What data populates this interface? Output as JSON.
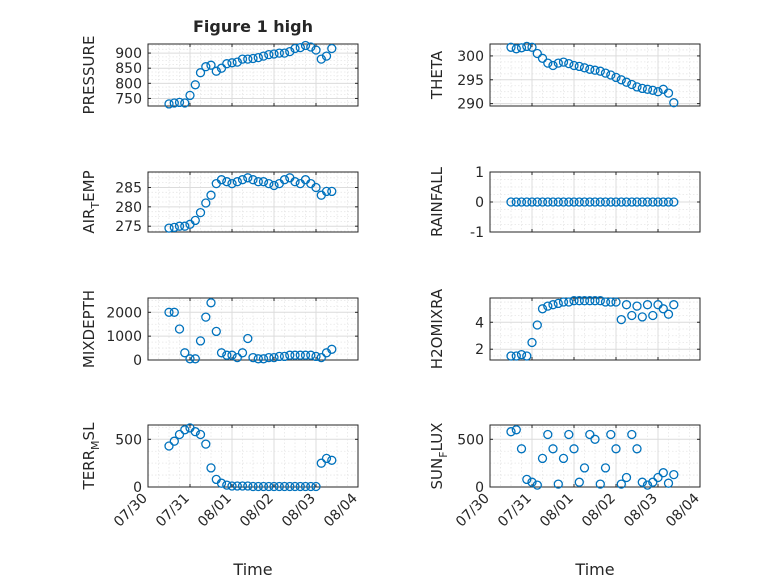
{
  "colors": {
    "series": "#0072bd",
    "axis": "#262626",
    "grid": "#dcdcdc"
  },
  "chart_data": [
    {
      "id": "pressure",
      "type": "scatter",
      "title": "Figure 1 high",
      "ylabel": "PRESSURE",
      "xlabel": "",
      "xlim": [
        "07/30",
        "08/04"
      ],
      "ylim": [
        725,
        930
      ],
      "yticks": [
        750,
        800,
        850,
        900
      ],
      "ylog": false,
      "xticks": [],
      "grid": true,
      "grid_minor": true,
      "x": [
        "07/30 12:00",
        "07/30 15:00",
        "07/30 18:00",
        "07/30 21:00",
        "07/31 00:00",
        "07/31 03:00",
        "07/31 06:00",
        "07/31 09:00",
        "07/31 12:00",
        "07/31 15:00",
        "07/31 18:00",
        "07/31 21:00",
        "08/01 00:00",
        "08/01 03:00",
        "08/01 06:00",
        "08/01 09:00",
        "08/01 12:00",
        "08/01 15:00",
        "08/01 18:00",
        "08/01 21:00",
        "08/02 00:00",
        "08/02 03:00",
        "08/02 06:00",
        "08/02 09:00",
        "08/02 12:00",
        "08/02 15:00",
        "08/02 18:00",
        "08/02 21:00",
        "08/03 00:00",
        "08/03 03:00",
        "08/03 06:00",
        "08/03 09:00"
      ],
      "y": [
        732,
        735,
        737,
        735,
        760,
        795,
        835,
        855,
        860,
        840,
        850,
        865,
        868,
        870,
        880,
        880,
        882,
        885,
        890,
        895,
        897,
        900,
        900,
        905,
        915,
        918,
        925,
        920,
        910,
        880,
        890,
        915
      ]
    },
    {
      "id": "theta",
      "type": "scatter",
      "title": "",
      "ylabel": "THETA",
      "xlabel": "",
      "xlim": [
        "07/30",
        "08/04"
      ],
      "ylim": [
        289.5,
        302.5
      ],
      "yticks": [
        290,
        295,
        300
      ],
      "ylog": false,
      "xticks": [],
      "grid": true,
      "grid_minor": true,
      "x": [
        "07/30 12:00",
        "07/30 15:00",
        "07/30 18:00",
        "07/30 21:00",
        "07/31 00:00",
        "07/31 03:00",
        "07/31 06:00",
        "07/31 09:00",
        "07/31 12:00",
        "07/31 15:00",
        "07/31 18:00",
        "07/31 21:00",
        "08/01 00:00",
        "08/01 03:00",
        "08/01 06:00",
        "08/01 09:00",
        "08/01 12:00",
        "08/01 15:00",
        "08/01 18:00",
        "08/01 21:00",
        "08/02 00:00",
        "08/02 03:00",
        "08/02 06:00",
        "08/02 09:00",
        "08/02 12:00",
        "08/02 15:00",
        "08/02 18:00",
        "08/02 21:00",
        "08/03 00:00",
        "08/03 03:00",
        "08/03 06:00",
        "08/03 09:00"
      ],
      "y": [
        301.8,
        301.5,
        301.7,
        302,
        301.8,
        300.5,
        299.5,
        298.5,
        298,
        298.5,
        298.7,
        298.4,
        298,
        297.8,
        297.5,
        297.2,
        297,
        296.8,
        296.4,
        296,
        295.5,
        295,
        294.5,
        294,
        293.5,
        293.2,
        293,
        292.8,
        292.5,
        293,
        292.2,
        290.2
      ]
    },
    {
      "id": "air_temp",
      "type": "scatter",
      "title": "",
      "ylabel": "AIR",
      "ylabel_sub": "T",
      "ylabel_rest": "EMP",
      "xlabel": "",
      "xlim": [
        "07/30",
        "08/04"
      ],
      "ylim": [
        273.5,
        289
      ],
      "yticks": [
        275,
        280,
        285
      ],
      "ylog": false,
      "xticks": [],
      "grid": true,
      "grid_minor": true,
      "x": [
        "07/30 12:00",
        "07/30 15:00",
        "07/30 18:00",
        "07/30 21:00",
        "07/31 00:00",
        "07/31 03:00",
        "07/31 06:00",
        "07/31 09:00",
        "07/31 12:00",
        "07/31 15:00",
        "07/31 18:00",
        "07/31 21:00",
        "08/01 00:00",
        "08/01 03:00",
        "08/01 06:00",
        "08/01 09:00",
        "08/01 12:00",
        "08/01 15:00",
        "08/01 18:00",
        "08/01 21:00",
        "08/02 00:00",
        "08/02 03:00",
        "08/02 06:00",
        "08/02 09:00",
        "08/02 12:00",
        "08/02 15:00",
        "08/02 18:00",
        "08/02 21:00",
        "08/03 00:00",
        "08/03 03:00",
        "08/03 06:00",
        "08/03 09:00"
      ],
      "y": [
        274.5,
        274.7,
        275,
        275,
        275.5,
        276.5,
        278.5,
        281,
        283,
        286,
        287,
        286.5,
        286,
        286.5,
        287,
        287.5,
        287,
        286.5,
        286.5,
        286,
        285.5,
        286,
        287,
        287.5,
        286.5,
        286,
        287,
        286,
        285,
        283,
        284,
        284
      ]
    },
    {
      "id": "rainfall",
      "type": "scatter",
      "title": "",
      "ylabel": "RAINFALL",
      "xlabel": "",
      "xlim": [
        "07/30",
        "08/04"
      ],
      "ylim": [
        -1,
        1
      ],
      "yticks": [
        -1,
        0,
        1
      ],
      "ylog": false,
      "xticks": [],
      "grid": true,
      "grid_minor": true,
      "x": [
        "07/30 12:00",
        "07/30 15:00",
        "07/30 18:00",
        "07/30 21:00",
        "07/31 00:00",
        "07/31 03:00",
        "07/31 06:00",
        "07/31 09:00",
        "07/31 12:00",
        "07/31 15:00",
        "07/31 18:00",
        "07/31 21:00",
        "08/01 00:00",
        "08/01 03:00",
        "08/01 06:00",
        "08/01 09:00",
        "08/01 12:00",
        "08/01 15:00",
        "08/01 18:00",
        "08/01 21:00",
        "08/02 00:00",
        "08/02 03:00",
        "08/02 06:00",
        "08/02 09:00",
        "08/02 12:00",
        "08/02 15:00",
        "08/02 18:00",
        "08/02 21:00",
        "08/03 00:00",
        "08/03 03:00",
        "08/03 06:00",
        "08/03 09:00"
      ],
      "y": [
        0,
        0,
        0,
        0,
        0,
        0,
        0,
        0,
        0,
        0,
        0,
        0,
        0,
        0,
        0,
        0,
        0,
        0,
        0,
        0,
        0,
        0,
        0,
        0,
        0,
        0,
        0,
        0,
        0,
        0,
        0,
        0
      ]
    },
    {
      "id": "mixdepth",
      "type": "scatter",
      "title": "",
      "ylabel": "MIXDEPTH",
      "xlabel": "",
      "xlim": [
        "07/30",
        "08/04"
      ],
      "ylim": [
        0,
        2600
      ],
      "yticks": [
        0,
        1000,
        2000
      ],
      "ylog": false,
      "xticks": [],
      "grid": true,
      "grid_minor": true,
      "x": [
        "07/30 12:00",
        "07/30 15:00",
        "07/30 18:00",
        "07/30 21:00",
        "07/31 00:00",
        "07/31 03:00",
        "07/31 06:00",
        "07/31 09:00",
        "07/31 12:00",
        "07/31 15:00",
        "07/31 18:00",
        "07/31 21:00",
        "08/01 00:00",
        "08/01 03:00",
        "08/01 06:00",
        "08/01 09:00",
        "08/01 12:00",
        "08/01 15:00",
        "08/01 18:00",
        "08/01 21:00",
        "08/02 00:00",
        "08/02 03:00",
        "08/02 06:00",
        "08/02 09:00",
        "08/02 12:00",
        "08/02 15:00",
        "08/02 18:00",
        "08/02 21:00",
        "08/03 00:00",
        "08/03 03:00",
        "08/03 06:00",
        "08/03 09:00"
      ],
      "y": [
        2000,
        2000,
        1300,
        300,
        50,
        50,
        800,
        1800,
        2400,
        1200,
        300,
        200,
        200,
        100,
        300,
        900,
        100,
        50,
        50,
        100,
        100,
        150,
        150,
        200,
        200,
        200,
        200,
        200,
        150,
        100,
        300,
        450
      ]
    },
    {
      "id": "h2omixra",
      "type": "scatter",
      "title": "",
      "ylabel": "H2OMIXRA",
      "xlabel": "",
      "xlim": [
        "07/30",
        "08/04"
      ],
      "ylim": [
        1.2,
        5.8
      ],
      "yticks": [
        2,
        4
      ],
      "ylog": false,
      "xticks": [],
      "grid": true,
      "grid_minor": true,
      "x": [
        "07/30 12:00",
        "07/30 15:00",
        "07/30 18:00",
        "07/30 21:00",
        "07/31 00:00",
        "07/31 03:00",
        "07/31 06:00",
        "07/31 09:00",
        "07/31 12:00",
        "07/31 15:00",
        "07/31 18:00",
        "07/31 21:00",
        "08/01 00:00",
        "08/01 03:00",
        "08/01 06:00",
        "08/01 09:00",
        "08/01 12:00",
        "08/01 15:00",
        "08/01 18:00",
        "08/01 21:00",
        "08/02 00:00",
        "08/02 03:00",
        "08/02 06:00",
        "08/02 09:00",
        "08/02 12:00",
        "08/02 15:00",
        "08/02 18:00",
        "08/02 21:00",
        "08/03 00:00",
        "08/03 03:00",
        "08/03 06:00",
        "08/03 09:00"
      ],
      "y": [
        1.5,
        1.5,
        1.6,
        1.5,
        2.5,
        3.8,
        5.0,
        5.2,
        5.3,
        5.4,
        5.5,
        5.5,
        5.6,
        5.6,
        5.6,
        5.6,
        5.6,
        5.6,
        5.5,
        5.5,
        5.5,
        4.2,
        5.3,
        4.5,
        5.2,
        4.4,
        5.3,
        4.5,
        5.3,
        5.0,
        4.6,
        5.3
      ]
    },
    {
      "id": "terrmsl",
      "type": "scatter",
      "title": "",
      "ylabel": "TERR",
      "ylabel_sub": "M",
      "ylabel_rest": "SL",
      "xlabel": "Time",
      "xlim": [
        "07/30",
        "08/04"
      ],
      "ylim": [
        0,
        650
      ],
      "yticks": [
        0,
        500
      ],
      "ylog": false,
      "xticks": [
        "07/30",
        "07/31",
        "08/01",
        "08/02",
        "08/03",
        "08/04"
      ],
      "grid": true,
      "grid_minor": true,
      "x": [
        "07/30 12:00",
        "07/30 15:00",
        "07/30 18:00",
        "07/30 21:00",
        "07/31 00:00",
        "07/31 03:00",
        "07/31 06:00",
        "07/31 09:00",
        "07/31 12:00",
        "07/31 15:00",
        "07/31 18:00",
        "07/31 21:00",
        "08/01 00:00",
        "08/01 03:00",
        "08/01 06:00",
        "08/01 09:00",
        "08/01 12:00",
        "08/01 15:00",
        "08/01 18:00",
        "08/01 21:00",
        "08/02 00:00",
        "08/02 03:00",
        "08/02 06:00",
        "08/02 09:00",
        "08/02 12:00",
        "08/02 15:00",
        "08/02 18:00",
        "08/02 21:00",
        "08/03 00:00",
        "08/03 03:00",
        "08/03 06:00",
        "08/03 09:00"
      ],
      "y": [
        430,
        480,
        550,
        600,
        620,
        580,
        550,
        450,
        200,
        80,
        40,
        20,
        10,
        10,
        10,
        10,
        5,
        5,
        5,
        5,
        5,
        5,
        5,
        5,
        5,
        5,
        5,
        5,
        5,
        250,
        300,
        280
      ]
    },
    {
      "id": "sunflux",
      "type": "scatter",
      "title": "",
      "ylabel": "SUN",
      "ylabel_sub": "F",
      "ylabel_rest": "LUX",
      "xlabel": "Time",
      "xlim": [
        "07/30",
        "08/04"
      ],
      "ylim": [
        0,
        650
      ],
      "yticks": [
        0,
        500
      ],
      "ylog": false,
      "xticks": [
        "07/30",
        "07/31",
        "08/01",
        "08/02",
        "08/03",
        "08/04"
      ],
      "grid": true,
      "grid_minor": true,
      "x": [
        "07/30 12:00",
        "07/30 15:00",
        "07/30 18:00",
        "07/30 21:00",
        "07/31 00:00",
        "07/31 03:00",
        "07/31 06:00",
        "07/31 09:00",
        "07/31 12:00",
        "07/31 15:00",
        "07/31 18:00",
        "07/31 21:00",
        "08/01 00:00",
        "08/01 03:00",
        "08/01 06:00",
        "08/01 09:00",
        "08/01 12:00",
        "08/01 15:00",
        "08/01 18:00",
        "08/01 21:00",
        "08/02 00:00",
        "08/02 03:00",
        "08/02 06:00",
        "08/02 09:00",
        "08/02 12:00",
        "08/02 15:00",
        "08/02 18:00",
        "08/02 21:00",
        "08/03 00:00",
        "08/03 03:00",
        "08/03 06:00",
        "08/03 09:00"
      ],
      "y": [
        580,
        600,
        400,
        80,
        50,
        20,
        300,
        550,
        400,
        30,
        300,
        550,
        400,
        50,
        200,
        550,
        500,
        30,
        200,
        550,
        400,
        30,
        100,
        550,
        400,
        50,
        20,
        50,
        100,
        150,
        40,
        130
      ]
    }
  ]
}
